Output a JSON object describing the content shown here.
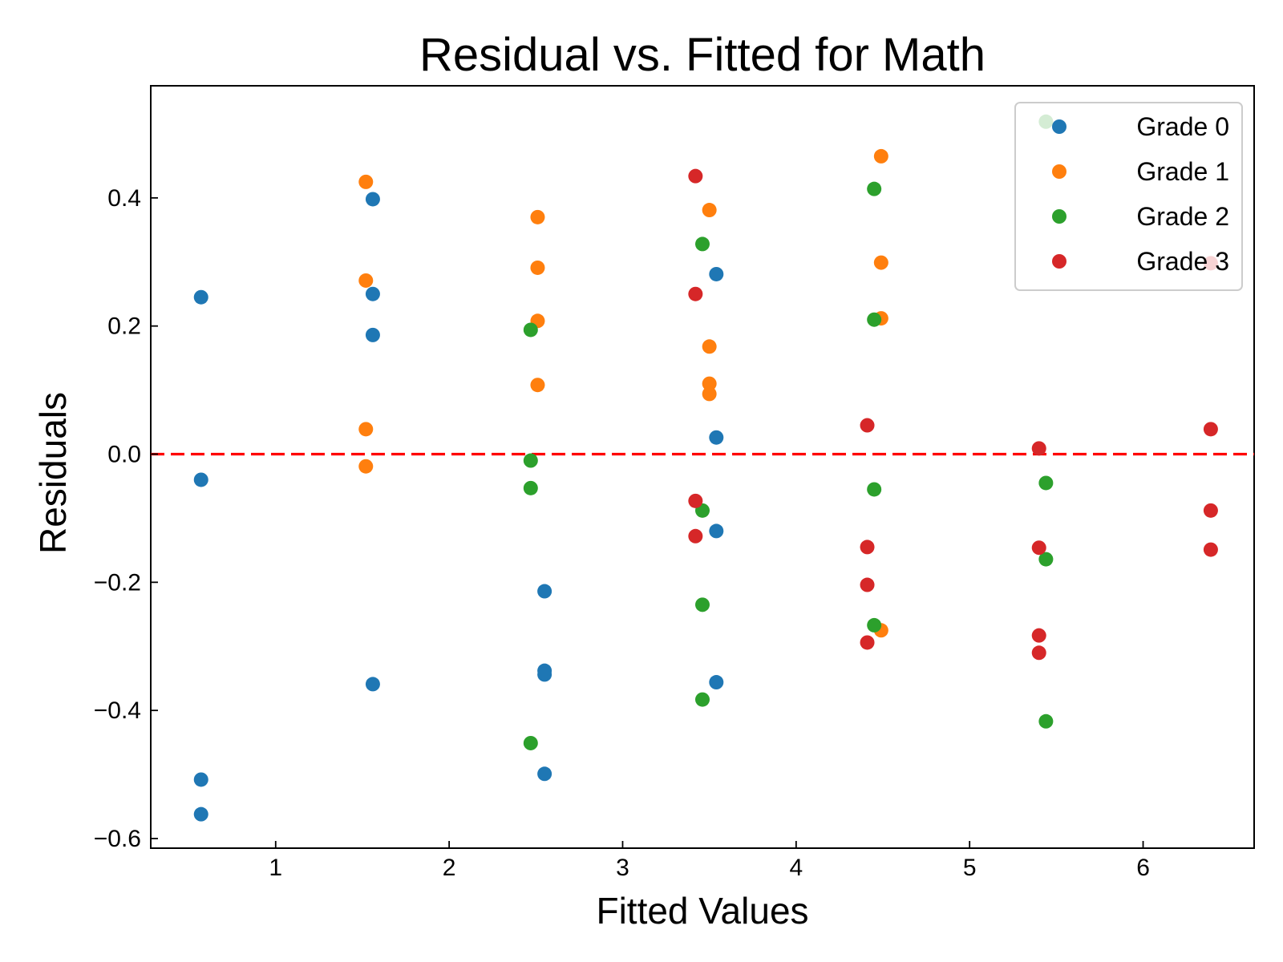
{
  "chart_data": {
    "type": "scatter",
    "title": "Residual vs. Fitted for Math",
    "xlabel": "Fitted Values",
    "ylabel": "Residuals",
    "xlim": [
      0.28,
      6.64
    ],
    "ylim": [
      -0.615,
      0.575
    ],
    "x_ticks": [
      1,
      2,
      3,
      4,
      5,
      6
    ],
    "y_ticks": [
      -0.6,
      -0.4,
      -0.2,
      0.0,
      0.2,
      0.4
    ],
    "x_tick_labels": [
      "1",
      "2",
      "3",
      "4",
      "5",
      "6"
    ],
    "y_tick_labels": [
      "−0.6",
      "−0.4",
      "−0.2",
      "0.0",
      "0.2",
      "0.4"
    ],
    "grid": false,
    "legend_position": "top-right",
    "reference_line": {
      "y": 0.0,
      "color": "#ff0000",
      "style": "dashed"
    },
    "series": [
      {
        "name": "Grade 0",
        "color": "#1f77b4",
        "points": [
          [
            0.57,
            0.245
          ],
          [
            0.57,
            -0.04
          ],
          [
            0.57,
            -0.508
          ],
          [
            0.57,
            -0.562
          ],
          [
            1.56,
            0.398
          ],
          [
            1.56,
            0.25
          ],
          [
            1.56,
            0.186
          ],
          [
            1.56,
            -0.359
          ],
          [
            2.55,
            -0.214
          ],
          [
            2.55,
            -0.338
          ],
          [
            2.55,
            -0.344
          ],
          [
            2.55,
            -0.499
          ],
          [
            3.54,
            0.281
          ],
          [
            3.54,
            0.026
          ],
          [
            3.54,
            -0.12
          ],
          [
            3.54,
            -0.356
          ]
        ]
      },
      {
        "name": "Grade 1",
        "color": "#ff7f0e",
        "points": [
          [
            1.52,
            0.425
          ],
          [
            1.52,
            0.271
          ],
          [
            1.52,
            0.039
          ],
          [
            1.52,
            -0.019
          ],
          [
            2.51,
            0.37
          ],
          [
            2.51,
            0.291
          ],
          [
            2.51,
            0.208
          ],
          [
            2.51,
            0.108
          ],
          [
            3.5,
            0.381
          ],
          [
            3.5,
            0.168
          ],
          [
            3.5,
            0.11
          ],
          [
            3.5,
            0.094
          ],
          [
            4.49,
            0.465
          ],
          [
            4.49,
            0.299
          ],
          [
            4.49,
            0.212
          ],
          [
            4.49,
            -0.275
          ]
        ]
      },
      {
        "name": "Grade 2",
        "color": "#2ca02c",
        "points": [
          [
            2.47,
            0.194
          ],
          [
            2.47,
            -0.01
          ],
          [
            2.47,
            -0.053
          ],
          [
            2.47,
            -0.451
          ],
          [
            3.46,
            0.328
          ],
          [
            3.46,
            -0.088
          ],
          [
            3.46,
            -0.235
          ],
          [
            3.46,
            -0.383
          ],
          [
            4.45,
            0.414
          ],
          [
            4.45,
            0.21
          ],
          [
            4.45,
            -0.055
          ],
          [
            4.45,
            -0.267
          ],
          [
            5.44,
            0.519
          ],
          [
            5.44,
            -0.045
          ],
          [
            5.44,
            -0.164
          ],
          [
            5.44,
            -0.417
          ]
        ]
      },
      {
        "name": "Grade 3",
        "color": "#d62728",
        "points": [
          [
            3.42,
            0.434
          ],
          [
            3.42,
            0.25
          ],
          [
            3.42,
            -0.073
          ],
          [
            3.42,
            -0.128
          ],
          [
            4.41,
            0.045
          ],
          [
            4.41,
            -0.145
          ],
          [
            4.41,
            -0.204
          ],
          [
            4.41,
            -0.294
          ],
          [
            5.4,
            0.009
          ],
          [
            5.4,
            -0.146
          ],
          [
            5.4,
            -0.283
          ],
          [
            5.4,
            -0.31
          ],
          [
            6.39,
            0.298
          ],
          [
            6.39,
            0.039
          ],
          [
            6.39,
            -0.088
          ],
          [
            6.39,
            -0.149
          ]
        ]
      }
    ]
  }
}
